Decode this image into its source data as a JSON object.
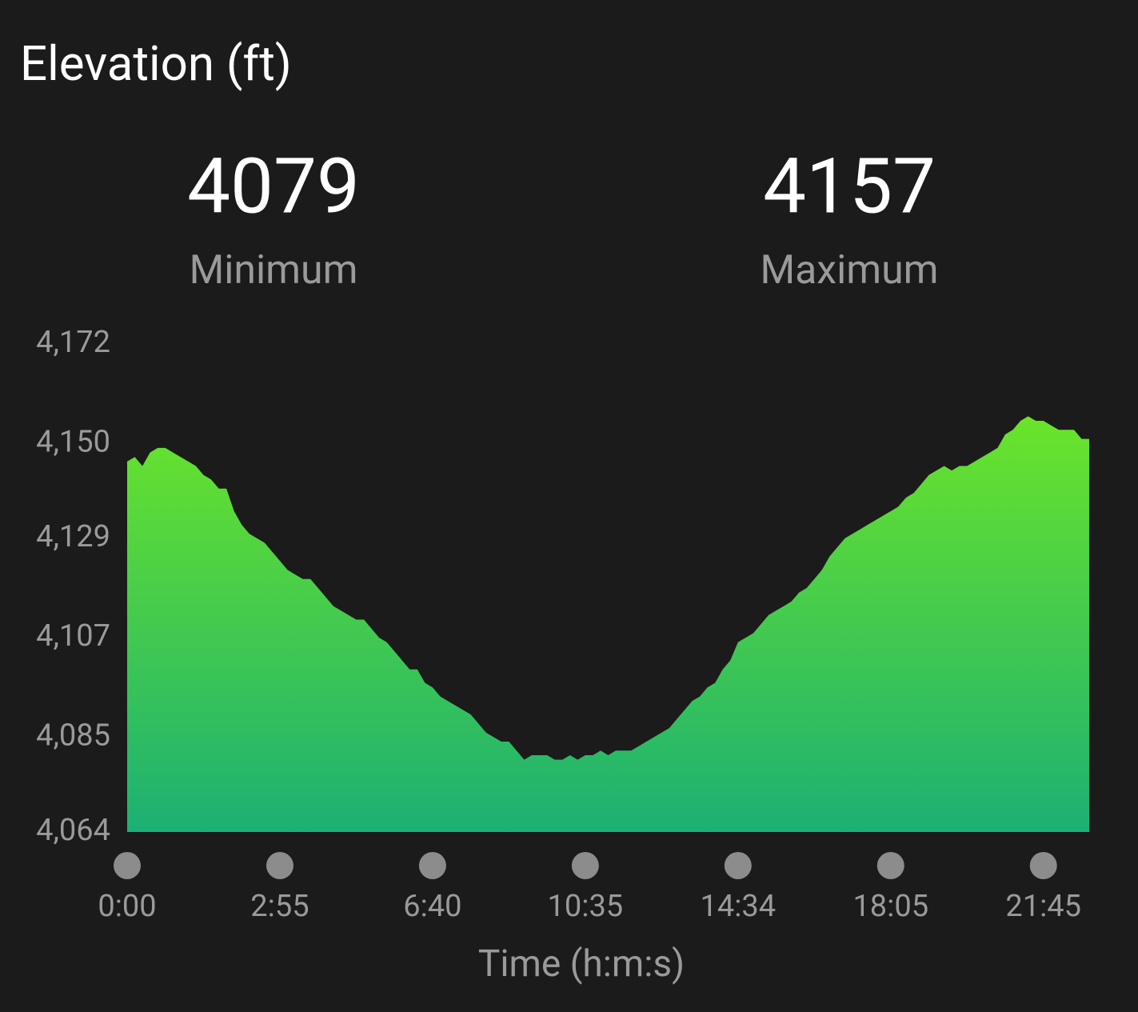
{
  "title": "Elevation (ft)",
  "stats": [
    {
      "value": 4079,
      "label": "Minimum"
    },
    {
      "value": 4157,
      "label": "Maximum"
    }
  ],
  "chart_data": {
    "type": "area",
    "xlabel": "Time (h:m:s)",
    "values": [
      4146,
      4147,
      4145,
      4148,
      4149,
      4149,
      4148,
      4147,
      4146,
      4145,
      4143,
      4142,
      4140,
      4140,
      4135,
      4132,
      4130,
      4129,
      4128,
      4126,
      4124,
      4122,
      4121,
      4120,
      4120,
      4118,
      4116,
      4114,
      4113,
      4112,
      4111,
      4111,
      4109,
      4107,
      4106,
      4104,
      4102,
      4100,
      4100,
      4097,
      4096,
      4094,
      4093,
      4092,
      4091,
      4090,
      4088,
      4086,
      4085,
      4084,
      4084,
      4082,
      4080,
      4081,
      4081,
      4081,
      4080,
      4080,
      4081,
      4080,
      4081,
      4081,
      4082,
      4081,
      4082,
      4082,
      4082,
      4083,
      4084,
      4085,
      4086,
      4087,
      4089,
      4091,
      4093,
      4094,
      4096,
      4097,
      4100,
      4102,
      4106,
      4107,
      4108,
      4110,
      4112,
      4113,
      4114,
      4115,
      4117,
      4118,
      4120,
      4122,
      4125,
      4127,
      4129,
      4130,
      4131,
      4132,
      4133,
      4134,
      4135,
      4136,
      4138,
      4139,
      4141,
      4143,
      4144,
      4145,
      4144,
      4145,
      4145,
      4146,
      4147,
      4148,
      4149,
      4152,
      4153,
      4155,
      4156,
      4155,
      4155,
      4154,
      4153,
      4153,
      4153,
      4151,
      4151
    ],
    "colors": [
      "#6ae42a",
      "#1cb074"
    ],
    "xlim": [
      0,
      126
    ],
    "xticks": [
      {
        "value": 0,
        "label": "0:00"
      },
      {
        "value": 20,
        "label": "2:55"
      },
      {
        "value": 40,
        "label": "6:40"
      },
      {
        "value": 60,
        "label": "10:35"
      },
      {
        "value": 80,
        "label": "14:34"
      },
      {
        "value": 100,
        "label": "18:05"
      },
      {
        "value": 120,
        "label": "21:45"
      }
    ],
    "ylim": [
      4064,
      4172
    ],
    "yticks": [
      {
        "value": 4064,
        "label": "4,064"
      },
      {
        "value": 4085,
        "label": "4,085"
      },
      {
        "value": 4107,
        "label": "4,107"
      },
      {
        "value": 4129,
        "label": "4,129"
      },
      {
        "value": 4150,
        "label": "4,150"
      },
      {
        "value": 4172,
        "label": "4,172"
      }
    ]
  }
}
